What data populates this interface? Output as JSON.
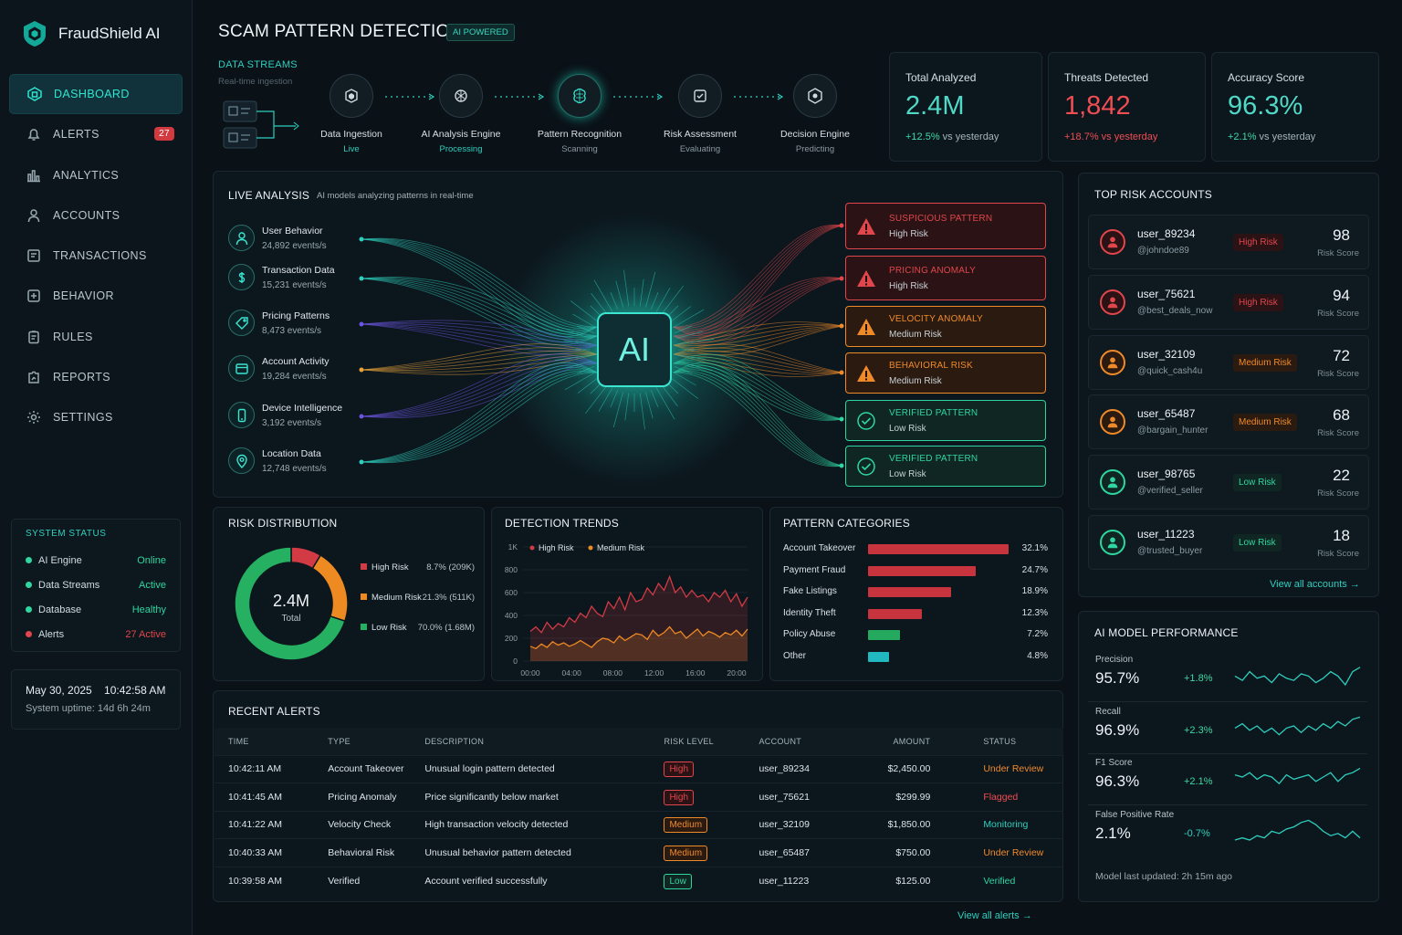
{
  "app": {
    "name": "FraudShield AI"
  },
  "nav": {
    "items": [
      {
        "label": "DASHBOARD",
        "icon": "dashboard-icon"
      },
      {
        "label": "ALERTS",
        "icon": "bell-icon",
        "badge": "27"
      },
      {
        "label": "ANALYTICS",
        "icon": "bar-chart-icon"
      },
      {
        "label": "ACCOUNTS",
        "icon": "user-icon"
      },
      {
        "label": "TRANSACTIONS",
        "icon": "receipt-icon"
      },
      {
        "label": "BEHAVIOR",
        "icon": "behavior-icon"
      },
      {
        "label": "RULES",
        "icon": "clipboard-icon"
      },
      {
        "label": "REPORTS",
        "icon": "report-icon"
      },
      {
        "label": "SETTINGS",
        "icon": "gear-icon"
      }
    ]
  },
  "system_status": {
    "title": "SYSTEM STATUS",
    "rows": [
      {
        "label": "AI Engine",
        "value": "Online",
        "color": "#2fd6a0"
      },
      {
        "label": "Data Streams",
        "value": "Active",
        "color": "#2fd6a0"
      },
      {
        "label": "Database",
        "value": "Healthy",
        "color": "#2fd6a0"
      },
      {
        "label": "Alerts",
        "value": "27 Active",
        "color": "#e0464b"
      }
    ]
  },
  "clock": {
    "datetime": "May 30, 2025    10:42:58 AM",
    "uptime": "System uptime: 14d 6h 24m"
  },
  "header": {
    "title": "SCAM PATTERN DETECTION",
    "tag": "AI POWERED"
  },
  "pipeline": {
    "title": "DATA STREAMS",
    "subtitle": "Real-time ingestion",
    "stages": [
      {
        "name": "Data Ingestion",
        "status": "Live",
        "color": "#2ecfbe"
      },
      {
        "name": "AI Analysis Engine",
        "status": "Processing",
        "color": "#2ecfbe"
      },
      {
        "name": "Pattern Recognition",
        "status": "Scanning",
        "color": "#8a989f"
      },
      {
        "name": "Risk Assessment",
        "status": "Evaluating",
        "color": "#8a989f"
      },
      {
        "name": "Decision Engine",
        "status": "Predicting",
        "color": "#8a989f"
      }
    ]
  },
  "kpis": [
    {
      "title": "Total Analyzed",
      "value": "2.4M",
      "change": "+12.5%",
      "suffix": " vs yesterday",
      "color": "#4fd9c6",
      "change_color": "#3fd9a6"
    },
    {
      "title": "Threats Detected",
      "value": "1,842",
      "change": "+18.7% vs yesterday",
      "suffix": "",
      "color": "#ef4e52",
      "change_color": "#ef4e52"
    },
    {
      "title": "Accuracy Score",
      "value": "96.3%",
      "change": "+2.1%",
      "suffix": " vs yesterday",
      "color": "#4fd9c6",
      "change_color": "#3fd9a6"
    }
  ],
  "live_analysis": {
    "title": "LIVE ANALYSIS",
    "subtitle": "AI models analyzing patterns in real-time",
    "chip_label": "AI",
    "inputs": [
      {
        "name": "User Behavior",
        "rate": "24,892 events/s",
        "icon": "user-icon"
      },
      {
        "name": "Transaction Data",
        "rate": "15,231 events/s",
        "icon": "dollar-icon"
      },
      {
        "name": "Pricing Patterns",
        "rate": "8,473 events/s",
        "icon": "tag-icon"
      },
      {
        "name": "Account Activity",
        "rate": "19,284 events/s",
        "icon": "card-icon"
      },
      {
        "name": "Device Intelligence",
        "rate": "3,192 events/s",
        "icon": "phone-icon"
      },
      {
        "name": "Location Data",
        "rate": "12,748 events/s",
        "icon": "location-icon"
      }
    ],
    "outputs": [
      {
        "title": "SUSPICIOUS PATTERN",
        "level": "High Risk",
        "kind": "high"
      },
      {
        "title": "PRICING ANOMALY",
        "level": "High Risk",
        "kind": "high"
      },
      {
        "title": "VELOCITY ANOMALY",
        "level": "Medium Risk",
        "kind": "medium"
      },
      {
        "title": "BEHAVIORAL RISK",
        "level": "Medium Risk",
        "kind": "medium"
      },
      {
        "title": "VERIFIED PATTERN",
        "level": "Low Risk",
        "kind": "low"
      },
      {
        "title": "VERIFIED PATTERN",
        "level": "Low Risk",
        "kind": "low"
      }
    ]
  },
  "top_risk": {
    "title": "TOP RISK ACCOUNTS",
    "score_label": "Risk Score",
    "link": "View all accounts →",
    "accounts": [
      {
        "user": "user_89234",
        "handle": "@johndoe89",
        "badge": "High Risk",
        "score": "98",
        "kind": "high"
      },
      {
        "user": "user_75621",
        "handle": "@best_deals_now",
        "badge": "High Risk",
        "score": "94",
        "kind": "high"
      },
      {
        "user": "user_32109",
        "handle": "@quick_cash4u",
        "badge": "Medium Risk",
        "score": "72",
        "kind": "medium"
      },
      {
        "user": "user_65487",
        "handle": "@bargain_hunter",
        "badge": "Medium Risk",
        "score": "68",
        "kind": "medium"
      },
      {
        "user": "user_98765",
        "handle": "@verified_seller",
        "badge": "Low Risk",
        "score": "22",
        "kind": "low"
      },
      {
        "user": "user_11223",
        "handle": "@trusted_buyer",
        "badge": "Low Risk",
        "score": "18",
        "kind": "low"
      }
    ]
  },
  "risk_distribution": {
    "title": "RISK DISTRIBUTION",
    "center_value": "2.4M",
    "center_label": "Total"
  },
  "detection_trends": {
    "title": "DETECTION TRENDS"
  },
  "pattern_categories": {
    "title": "PATTERN CATEGORIES"
  },
  "chart_data": [
    {
      "type": "pie",
      "title": "RISK DISTRIBUTION",
      "slices": [
        {
          "label": "High Risk",
          "percent": "8.7%",
          "count": "(209K)",
          "value": 8.7,
          "color": "#d23a44"
        },
        {
          "label": "Medium Risk",
          "percent": "21.3%",
          "count": "(511K)",
          "value": 21.3,
          "color": "#ee8a22"
        },
        {
          "label": "Low Risk",
          "percent": "70.0%",
          "count": "(1.68M)",
          "value": 70.0,
          "color": "#26b061"
        }
      ]
    },
    {
      "type": "area",
      "title": "DETECTION TRENDS",
      "x_ticks": [
        "00:00",
        "04:00",
        "08:00",
        "12:00",
        "16:00",
        "20:00"
      ],
      "y_ticks": [
        "0",
        "200",
        "400",
        "600",
        "800",
        "1K"
      ],
      "ylim": [
        0,
        1000
      ],
      "legend": "top-left",
      "series": [
        {
          "name": "High Risk",
          "color": "#d23a44",
          "values": [
            260,
            300,
            250,
            340,
            280,
            330,
            300,
            380,
            340,
            420,
            380,
            480,
            420,
            390,
            520,
            460,
            560,
            450,
            600,
            520,
            540,
            640,
            580,
            680,
            620,
            740,
            600,
            650,
            560,
            620,
            560,
            580,
            520,
            600,
            560,
            620,
            520,
            590,
            480,
            560
          ]
        },
        {
          "name": "Medium Risk",
          "color": "#ee8a22",
          "values": [
            130,
            110,
            150,
            120,
            170,
            140,
            160,
            130,
            150,
            180,
            150,
            120,
            170,
            200,
            190,
            160,
            220,
            180,
            210,
            240,
            230,
            190,
            270,
            220,
            250,
            300,
            240,
            260,
            200,
            240,
            280,
            220,
            260,
            240,
            210,
            250,
            230,
            270,
            220,
            280
          ]
        }
      ]
    },
    {
      "type": "bar",
      "title": "PATTERN CATEGORIES",
      "categories": [
        "Account Takeover",
        "Payment Fraud",
        "Fake Listings",
        "Identity Theft",
        "Policy Abuse",
        "Other"
      ],
      "values": [
        32.1,
        24.7,
        18.9,
        12.3,
        7.2,
        4.8
      ],
      "labels": [
        "32.1%",
        "24.7%",
        "18.9%",
        "12.3%",
        "7.2%",
        "4.8%"
      ],
      "colors": [
        "#c8343d",
        "#c8343d",
        "#c8343d",
        "#c8343d",
        "#25a95e",
        "#22b8c0"
      ]
    }
  ],
  "recent_alerts": {
    "title": "RECENT ALERTS",
    "columns": [
      "TIME",
      "TYPE",
      "DESCRIPTION",
      "RISK LEVEL",
      "ACCOUNT",
      "AMOUNT",
      "STATUS"
    ],
    "rows": [
      {
        "time": "10:42:11 AM",
        "type": "Account Takeover",
        "desc": "Unusual login pattern detected",
        "level": "High",
        "account": "user_89234",
        "amount": "$2,450.00",
        "status": "Under Review",
        "kind": "high",
        "status_color": "#ef8a2a"
      },
      {
        "time": "10:41:45 AM",
        "type": "Pricing Anomaly",
        "desc": "Price significantly below market",
        "level": "High",
        "account": "user_75621",
        "amount": "$299.99",
        "status": "Flagged",
        "kind": "high",
        "status_color": "#ef4e52"
      },
      {
        "time": "10:41:22 AM",
        "type": "Velocity Check",
        "desc": "High transaction velocity detected",
        "level": "Medium",
        "account": "user_32109",
        "amount": "$1,850.00",
        "status": "Monitoring",
        "kind": "medium",
        "status_color": "#2ecfbe"
      },
      {
        "time": "10:40:33 AM",
        "type": "Behavioral Risk",
        "desc": "Unusual behavior pattern detected",
        "level": "Medium",
        "account": "user_65487",
        "amount": "$750.00",
        "status": "Under Review",
        "kind": "medium",
        "status_color": "#ef8a2a"
      },
      {
        "time": "10:39:58 AM",
        "type": "Verified",
        "desc": "Account verified successfully",
        "level": "Low",
        "account": "user_11223",
        "amount": "$125.00",
        "status": "Verified",
        "kind": "low",
        "status_color": "#2fd6a0"
      }
    ],
    "link": "View all alerts →"
  },
  "model_perf": {
    "title": "AI MODEL PERFORMANCE",
    "metrics": [
      {
        "label": "Precision",
        "value": "95.7%",
        "delta": "+1.8%",
        "delta_color": "#3fd9a6"
      },
      {
        "label": "Recall",
        "value": "96.9%",
        "delta": "+2.3%",
        "delta_color": "#3fd9a6"
      },
      {
        "label": "F1 Score",
        "value": "96.3%",
        "delta": "+2.1%",
        "delta_color": "#3fd9a6"
      },
      {
        "label": "False Positive Rate",
        "value": "2.1%",
        "delta": "-0.7%",
        "delta_color": "#2ecfbe"
      }
    ],
    "updated": "Model last updated: 2h 15m ago"
  },
  "colors": {
    "accent": "#2ecfbe",
    "high": "#e0464b",
    "medium": "#ef8a2a",
    "low": "#2fd6a0"
  }
}
